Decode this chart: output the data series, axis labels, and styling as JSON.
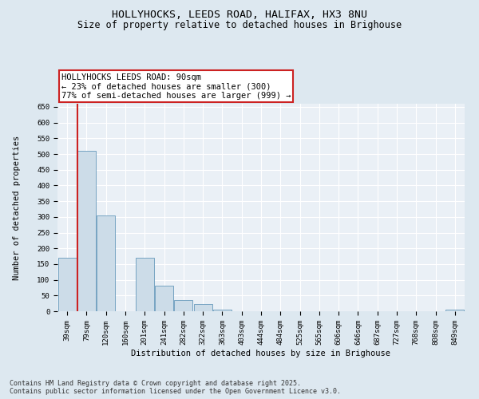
{
  "title1": "HOLLYHOCKS, LEEDS ROAD, HALIFAX, HX3 8NU",
  "title2": "Size of property relative to detached houses in Brighouse",
  "xlabel": "Distribution of detached houses by size in Brighouse",
  "ylabel": "Number of detached properties",
  "categories": [
    "39sqm",
    "79sqm",
    "120sqm",
    "160sqm",
    "201sqm",
    "241sqm",
    "282sqm",
    "322sqm",
    "363sqm",
    "403sqm",
    "444sqm",
    "484sqm",
    "525sqm",
    "565sqm",
    "606sqm",
    "646sqm",
    "687sqm",
    "727sqm",
    "768sqm",
    "808sqm",
    "849sqm"
  ],
  "values": [
    170,
    510,
    305,
    0,
    170,
    80,
    35,
    22,
    5,
    0,
    0,
    0,
    0,
    0,
    0,
    0,
    0,
    0,
    0,
    0,
    5
  ],
  "bar_color": "#ccdce8",
  "bar_edge_color": "#6699bb",
  "vline_x_index": 1,
  "vline_color": "#cc2222",
  "annotation_text": "HOLLYHOCKS LEEDS ROAD: 90sqm\n← 23% of detached houses are smaller (300)\n77% of semi-detached houses are larger (999) →",
  "annotation_box_facecolor": "#ffffff",
  "annotation_box_edgecolor": "#cc2222",
  "ylim": [
    0,
    660
  ],
  "yticks": [
    0,
    50,
    100,
    150,
    200,
    250,
    300,
    350,
    400,
    450,
    500,
    550,
    600,
    650
  ],
  "footer_line1": "Contains HM Land Registry data © Crown copyright and database right 2025.",
  "footer_line2": "Contains public sector information licensed under the Open Government Licence v3.0.",
  "bg_color": "#dde8f0",
  "plot_bg_color": "#eaf0f6",
  "grid_color": "#ffffff",
  "title_fontsize": 9.5,
  "subtitle_fontsize": 8.5,
  "tick_fontsize": 6.5,
  "label_fontsize": 7.5,
  "ann_fontsize": 7.5,
  "footer_fontsize": 6.0
}
